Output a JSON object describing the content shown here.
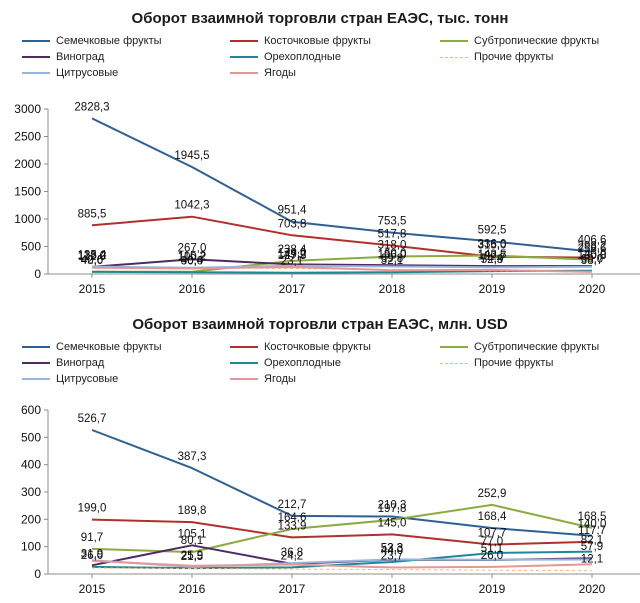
{
  "charts": [
    {
      "type": "line",
      "title": "Оборот взаимной торговли стран ЕАЭС, тыс. тонн",
      "categories": [
        "2015",
        "2016",
        "2017",
        "2018",
        "2019",
        "2020"
      ],
      "ylim": [
        0,
        3000
      ],
      "yticks": [
        0,
        500,
        1000,
        1500,
        2000,
        2500,
        3000
      ],
      "grid": false,
      "legend_position": "top",
      "series": [
        {
          "name": "Семечковые фрукты",
          "color": "#2e6096",
          "dashed": false,
          "values": [
            2828.3,
            1945.5,
            951.4,
            753.5,
            592.5,
            406.6
          ],
          "labels": [
            "2828,3",
            "1945,5",
            "951,4",
            "753,5",
            "592,5",
            "406,6"
          ]
        },
        {
          "name": "Косточковые фрукты",
          "color": "#b2302c",
          "dashed": false,
          "values": [
            885.5,
            1042.3,
            703.8,
            517.8,
            315.0,
            298.2
          ],
          "labels": [
            "885,5",
            "1042,3",
            "703,8",
            "517,8",
            "315,0",
            "298,2"
          ]
        },
        {
          "name": "Субтропические фрукты",
          "color": "#8aab3e",
          "dashed": false,
          "values": [
            42.6,
            40.4,
            238.4,
            318.0,
            336.0,
            258.6
          ],
          "labels": [
            "42,6",
            "40,4",
            "238,4",
            "318,0",
            "336,0",
            "258,6"
          ]
        },
        {
          "name": "Виноград",
          "color": "#4e2a62",
          "dashed": false,
          "values": [
            128.2,
            267.0,
            174.0,
            160.0,
            143.5,
            145.0
          ],
          "labels": [
            "128,2",
            "267,0",
            "174,0",
            "160,0",
            "143,5",
            "145,0"
          ]
        },
        {
          "name": "Орехоплодные",
          "color": "#1f8896",
          "dashed": false,
          "values": [
            40.0,
            30.0,
            23.1,
            32.1,
            52.3,
            60.0
          ],
          "labels": [
            "40,0",
            "30,0",
            "23,1",
            "32,1",
            "52,3",
            "60,0"
          ]
        },
        {
          "name": "Прочие фрукты",
          "color": "#f0b88a",
          "dashed": true,
          "values": [
            120.0,
            110.0,
            100.0,
            80.0,
            60.0,
            40.0
          ],
          "labels": []
        },
        {
          "name": "Цитрусовые",
          "color": "#9ab4de",
          "dashed": false,
          "values": [
            135.4,
            115.2,
            149.2,
            136.0,
            122.7,
            130.8
          ],
          "labels": [
            "135,4",
            "115,2",
            "149,2",
            "136,0",
            "122,7",
            "130,8"
          ]
        },
        {
          "name": "Ягоды",
          "color": "#e49797",
          "dashed": false,
          "values": [
            112.0,
            100.2,
            127.5,
            69.8,
            74.4,
            38.7
          ],
          "labels": [
            "112,0",
            "100,2",
            "127,5",
            "69,8",
            "74,4",
            "38,7"
          ]
        }
      ]
    },
    {
      "type": "line",
      "title": "Оборот взаимной торговли стран ЕАЭС, млн. USD",
      "categories": [
        "2015",
        "2016",
        "2017",
        "2018",
        "2019",
        "2020"
      ],
      "ylim": [
        0,
        600
      ],
      "yticks": [
        0,
        100,
        200,
        300,
        400,
        500,
        600
      ],
      "grid": false,
      "legend_position": "top",
      "series": [
        {
          "name": "Семечковые фрукты",
          "color": "#2e6096",
          "dashed": false,
          "values": [
            526.7,
            387.3,
            212.7,
            210.3,
            168.4,
            140.0
          ],
          "labels": [
            "526,7",
            "387,3",
            "212,7",
            "210,3",
            "168,4",
            "140,0"
          ]
        },
        {
          "name": "Косточковые фрукты",
          "color": "#b2302c",
          "dashed": false,
          "values": [
            199.0,
            189.8,
            133.9,
            145.0,
            107.7,
            117.7
          ],
          "labels": [
            "199,0",
            "189,8",
            "133,9",
            "145,0",
            "107,7",
            "117,7"
          ]
        },
        {
          "name": "Субтропические фрукты",
          "color": "#8aab3e",
          "dashed": false,
          "values": [
            91.7,
            80.1,
            164.6,
            197.8,
            252.9,
            168.5
          ],
          "labels": [
            "91,7",
            "80,1",
            "164,6",
            "197,8",
            "252,9",
            "168,5"
          ]
        },
        {
          "name": "Виноград",
          "color": "#4e2a62",
          "dashed": false,
          "values": [
            31.9,
            105.1,
            36.8,
            52.3,
            51.1,
            57.9
          ],
          "labels": [
            "31,9",
            "105,1",
            "36,8",
            "52,3",
            "51,1",
            "57,9"
          ]
        },
        {
          "name": "Орехоплодные",
          "color": "#1f8896",
          "dashed": false,
          "values": [
            26.0,
            21.5,
            24.2,
            44.0,
            77.0,
            82.1
          ],
          "labels": [
            "26,0",
            "21,5",
            "24,2",
            "44,0",
            "77,0",
            "82,1"
          ]
        },
        {
          "name": "Прочие фрукты",
          "color": "#f0b88a",
          "dashed": true,
          "values": [
            22.0,
            20.0,
            18.0,
            16.0,
            14.0,
            12.1
          ],
          "labels": [
            "",
            "",
            "",
            "",
            "",
            "12,1"
          ]
        },
        {
          "name": "Цитрусовые",
          "color": "#9ab4de",
          "dashed": false,
          "values": [
            50.0,
            25.9,
            40.0,
            53.3,
            52.1,
            53.0
          ],
          "labels": [
            "",
            "25,9",
            "",
            "53,3",
            "",
            ""
          ]
        },
        {
          "name": "Ягоды",
          "color": "#e49797",
          "dashed": false,
          "values": [
            48.0,
            30.0,
            34.6,
            23.7,
            26.0,
            36.0
          ],
          "labels": [
            "",
            "",
            "",
            "23,7",
            "26,0",
            ""
          ]
        }
      ]
    }
  ]
}
